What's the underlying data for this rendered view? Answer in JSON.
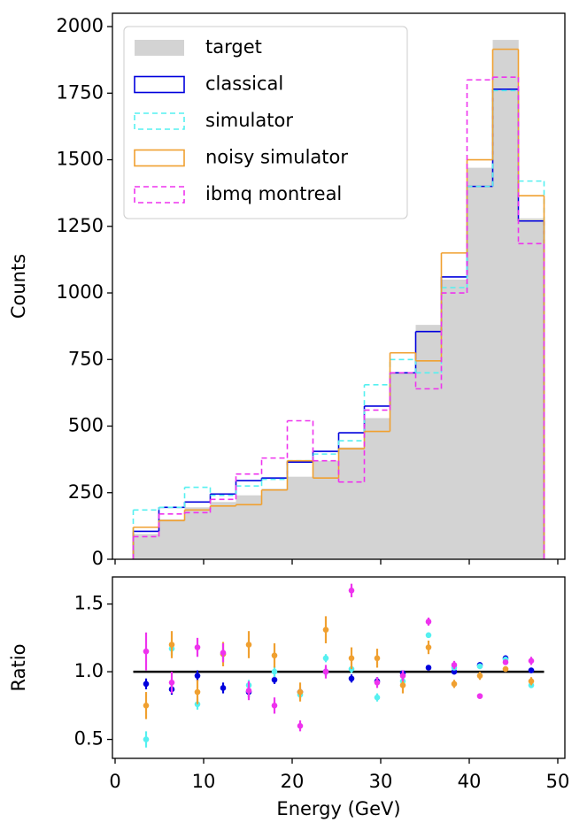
{
  "chart_data": [
    {
      "type": "histogram",
      "ylabel": "Counts",
      "bins": [
        2.05,
        4.95,
        7.85,
        10.75,
        13.65,
        16.55,
        19.45,
        22.35,
        25.25,
        28.15,
        31.05,
        33.95,
        36.85,
        39.75,
        42.65,
        45.55,
        48.45
      ],
      "series": [
        {
          "name": "target",
          "color": "#d3d3d3",
          "style": "filled",
          "values": [
            95,
            150,
            195,
            215,
            240,
            265,
            310,
            370,
            420,
            530,
            700,
            880,
            1050,
            1470,
            1950,
            1280
          ]
        },
        {
          "name": "classical",
          "color": "#0000dd",
          "style": "solid",
          "values": [
            105,
            195,
            215,
            245,
            295,
            305,
            365,
            405,
            475,
            575,
            700,
            855,
            1060,
            1400,
            1765,
            1270
          ]
        },
        {
          "name": "simulator",
          "color": "#55f0f0",
          "style": "dashed",
          "values": [
            185,
            195,
            270,
            240,
            275,
            300,
            370,
            395,
            445,
            655,
            750,
            700,
            1020,
            1400,
            1760,
            1420
          ]
        },
        {
          "name": "noisy simulator",
          "color": "#f0a030",
          "style": "solid",
          "values": [
            120,
            145,
            185,
            200,
            205,
            260,
            370,
            305,
            415,
            480,
            775,
            745,
            1150,
            1500,
            1915,
            1365
          ]
        },
        {
          "name": "ibmq montreal",
          "color": "#ee33ee",
          "style": "dashed",
          "values": [
            85,
            170,
            175,
            225,
            320,
            380,
            520,
            370,
            290,
            560,
            700,
            640,
            1000,
            1800,
            1810,
            1185
          ]
        }
      ],
      "xlim": [
        -0.3,
        50.8
      ],
      "ylim": [
        0,
        2050
      ],
      "yticks": [
        0,
        250,
        500,
        750,
        1000,
        1250,
        1500,
        1750,
        2000
      ],
      "legend": "upper left"
    },
    {
      "type": "errorbar",
      "xlabel": "Energy (GeV)",
      "ylabel": "Ratio",
      "x": [
        3.5,
        6.4,
        9.3,
        12.2,
        15.1,
        18.0,
        20.9,
        23.8,
        26.7,
        29.6,
        32.5,
        35.4,
        38.3,
        41.2,
        44.1,
        47.0
      ],
      "reference_line": 1,
      "reference_color": "#000000",
      "series": [
        {
          "name": "classical",
          "color": "#0000dd",
          "values": [
            0.91,
            0.87,
            0.97,
            0.88,
            0.85,
            0.94,
            0.85,
            1.0,
            0.95,
            0.93,
            0.99,
            1.03,
            1.0,
            1.05,
            1.1,
            1.01
          ],
          "errors": [
            0.04,
            0.04,
            0.04,
            0.04,
            0.04,
            0.03,
            0.03,
            0.03,
            0.03,
            0.03,
            0.02,
            0.02,
            0.02,
            0.02,
            0.02,
            0.02
          ]
        },
        {
          "name": "simulator",
          "color": "#55f0f0",
          "values": [
            0.5,
            1.17,
            0.76,
            1.13,
            0.9,
            1.0,
            0.83,
            1.1,
            1.02,
            0.81,
            0.93,
            1.27,
            1.03,
            1.04,
            1.09,
            0.9
          ],
          "errors": [
            0.06,
            0.05,
            0.04,
            0.04,
            0.04,
            0.04,
            0.03,
            0.03,
            0.03,
            0.03,
            0.02,
            0.02,
            0.02,
            0.02,
            0.02,
            0.02
          ]
        },
        {
          "name": "noisy simulator",
          "color": "#f0a030",
          "values": [
            0.75,
            1.2,
            0.85,
            1.13,
            1.2,
            1.12,
            0.85,
            1.31,
            1.1,
            1.1,
            0.9,
            1.18,
            0.91,
            0.97,
            1.02,
            0.93
          ],
          "errors": [
            0.1,
            0.1,
            0.09,
            0.09,
            0.1,
            0.09,
            0.07,
            0.1,
            0.08,
            0.07,
            0.06,
            0.05,
            0.03,
            0.03,
            0.02,
            0.03
          ]
        },
        {
          "name": "ibmq montreal",
          "color": "#ee33ee",
          "values": [
            1.15,
            0.92,
            1.18,
            1.14,
            0.86,
            0.75,
            0.6,
            1.0,
            1.6,
            0.92,
            0.97,
            1.37,
            1.05,
            0.82,
            1.07,
            1.08
          ],
          "errors": [
            0.14,
            0.08,
            0.07,
            0.07,
            0.07,
            0.06,
            0.04,
            0.05,
            0.05,
            0.04,
            0.04,
            0.03,
            0.03,
            0.02,
            0.02,
            0.03
          ]
        }
      ],
      "xlim": [
        -0.3,
        50.8
      ],
      "ylim": [
        0.36,
        1.7
      ],
      "xticks": [
        0,
        10,
        20,
        30,
        40,
        50
      ],
      "yticks": [
        0.5,
        {
          "value": 1,
          "label": "1.0"
        },
        1.5
      ]
    }
  ]
}
